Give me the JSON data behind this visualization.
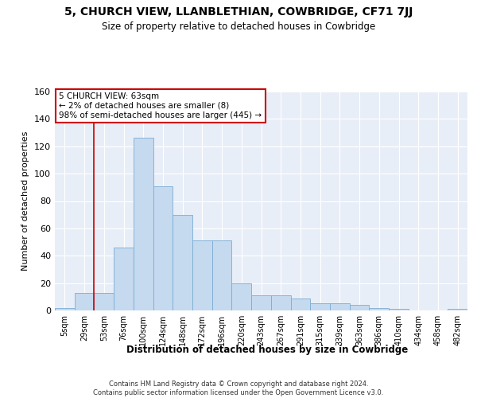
{
  "title": "5, CHURCH VIEW, LLANBLETHIAN, COWBRIDGE, CF71 7JJ",
  "subtitle": "Size of property relative to detached houses in Cowbridge",
  "xlabel": "Distribution of detached houses by size in Cowbridge",
  "ylabel": "Number of detached properties",
  "bar_values": [
    2,
    13,
    13,
    46,
    126,
    91,
    70,
    51,
    51,
    20,
    11,
    11,
    9,
    5,
    5,
    4,
    2,
    1,
    0,
    0,
    1
  ],
  "bar_labels": [
    "5sqm",
    "29sqm",
    "53sqm",
    "76sqm",
    "100sqm",
    "124sqm",
    "148sqm",
    "172sqm",
    "196sqm",
    "220sqm",
    "243sqm",
    "267sqm",
    "291sqm",
    "315sqm",
    "339sqm",
    "363sqm",
    "386sqm",
    "410sqm",
    "434sqm",
    "458sqm",
    "482sqm"
  ],
  "bar_color": "#c5d9ef",
  "bar_edgecolor": "#7aadd4",
  "background_color": "#e8eef7",
  "annotation_text": "5 CHURCH VIEW: 63sqm\n← 2% of detached houses are smaller (8)\n98% of semi-detached houses are larger (445) →",
  "annotation_box_edgecolor": "#cc0000",
  "vline_x": 1.5,
  "ylim": [
    0,
    160
  ],
  "yticks": [
    0,
    20,
    40,
    60,
    80,
    100,
    120,
    140,
    160
  ],
  "footer_line1": "Contains HM Land Registry data © Crown copyright and database right 2024.",
  "footer_line2": "Contains public sector information licensed under the Open Government Licence v3.0."
}
